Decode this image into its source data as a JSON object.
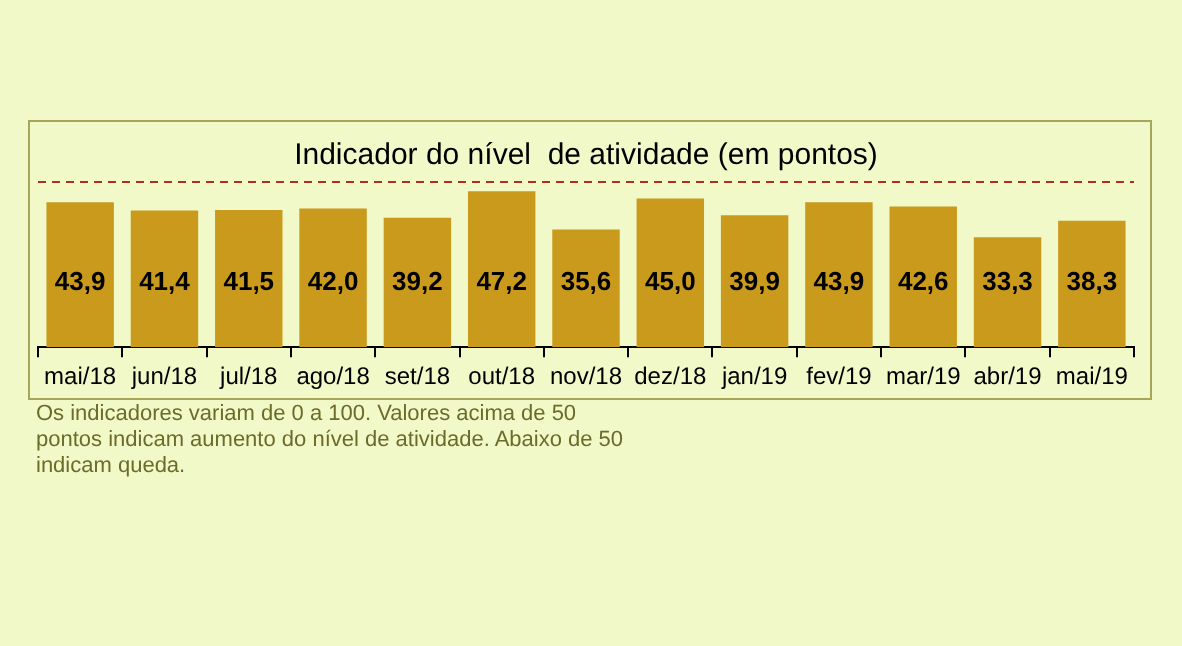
{
  "chart_data": {
    "type": "bar",
    "title": "Indicador do nível  de atividade (em pontos)",
    "categories": [
      "mai/18",
      "jun/18",
      "jul/18",
      "ago/18",
      "set/18",
      "out/18",
      "nov/18",
      "dez/18",
      "jan/19",
      "fev/19",
      "mar/19",
      "abr/19",
      "mai/19"
    ],
    "values": [
      43.9,
      41.4,
      41.5,
      42.0,
      39.2,
      47.2,
      35.6,
      45.0,
      39.9,
      43.9,
      42.6,
      33.3,
      38.3
    ],
    "value_labels": [
      "43,9",
      "41,4",
      "41,5",
      "42,0",
      "39,2",
      "47,2",
      "35,6",
      "45,0",
      "39,9",
      "43,9",
      "42,6",
      "33,3",
      "38,3"
    ],
    "color": "#c99a1c",
    "ref_lines": [
      {
        "axis": "y",
        "value": 50,
        "color": "#b03020",
        "line_style": "dashed"
      }
    ],
    "annotations": [
      "Os indicadores variam de 0 a 100. Valores acima de 50 pontos indicam aumento do nível de atividade. Abaixo de 50 indicam queda."
    ],
    "grid": false,
    "legend": false
  }
}
